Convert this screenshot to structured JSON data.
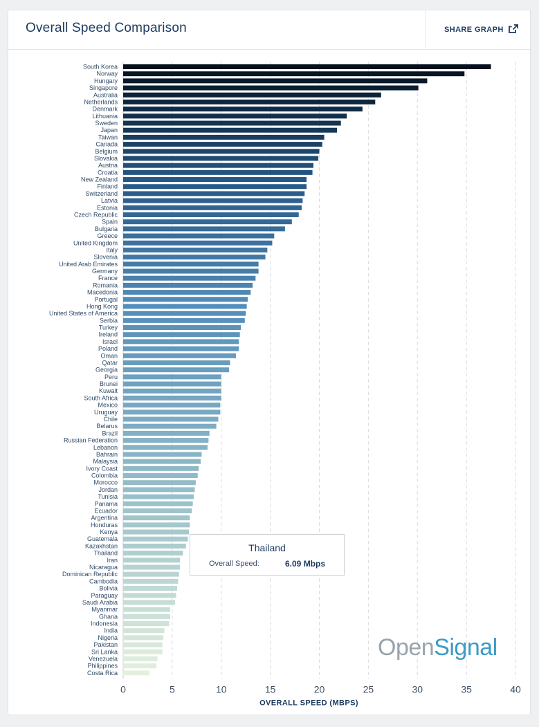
{
  "header": {
    "title": "Overall Speed Comparison",
    "share_label": "SHARE GRAPH",
    "share_icon": "share-icon"
  },
  "tooltip": {
    "country": "Thailand",
    "label": "Overall Speed:",
    "value": "6.09 Mbps"
  },
  "logo": {
    "open": "Open",
    "signal": "Signal"
  },
  "colors": {
    "bar_darkest": "#05101d",
    "bar_mid": "#3e82b6",
    "bar_lightest": "#e3f0de",
    "grid": "#d7dbdf",
    "text": "#1d3a5f",
    "logo_grey": "#9aa3ab",
    "logo_blue": "#3e99c8"
  },
  "chart_data": {
    "type": "bar",
    "orientation": "horizontal",
    "xlabel": "OVERALL SPEED (MBPS)",
    "xlim": [
      0,
      40
    ],
    "xticks": [
      0,
      5,
      10,
      15,
      20,
      25,
      30,
      35,
      40
    ],
    "grid": "vertical dashed",
    "categories": [
      "South Korea",
      "Norway",
      "Hungary",
      "Singapore",
      "Australia",
      "Netherlands",
      "Denmark",
      "Lithuania",
      "Sweden",
      "Japan",
      "Taiwan",
      "Canada",
      "Belgium",
      "Slovakia",
      "Austria",
      "Croatia",
      "New Zealand",
      "Finland",
      "Switzerland",
      "Latvia",
      "Estonia",
      "Czech Republic",
      "Spain",
      "Bulgaria",
      "Greece",
      "United Kingdom",
      "Italy",
      "Slovenia",
      "United Arab Emirates",
      "Germany",
      "France",
      "Romania",
      "Macedonia",
      "Portugal",
      "Hong Kong",
      "United States of America",
      "Serbia",
      "Turkey",
      "Ireland",
      "Israel",
      "Poland",
      "Oman",
      "Qatar",
      "Georgia",
      "Peru",
      "Brunei",
      "Kuwait",
      "South Africa",
      "Mexico",
      "Uruguay",
      "Chile",
      "Belarus",
      "Brazil",
      "Russian Federation",
      "Lebanon",
      "Bahrain",
      "Malaysia",
      "Ivory Coast",
      "Colombia",
      "Morocco",
      "Jordan",
      "Tunisia",
      "Panama",
      "Ecuador",
      "Argentina",
      "Honduras",
      "Kenya",
      "Guatemala",
      "Kazakhstan",
      "Thailand",
      "Iran",
      "Nicaragua",
      "Dominican Republic",
      "Cambodia",
      "Bolivia",
      "Paraguay",
      "Saudi Arabia",
      "Myanmar",
      "Ghana",
      "Indonesia",
      "India",
      "Nigeria",
      "Pakistan",
      "Sri Lanka",
      "Venezuela",
      "Philippines",
      "Costa Rica"
    ],
    "values": [
      37.5,
      34.8,
      31.0,
      30.1,
      26.3,
      25.7,
      24.4,
      22.8,
      22.2,
      21.8,
      20.5,
      20.3,
      20.0,
      19.9,
      19.4,
      19.3,
      18.7,
      18.7,
      18.5,
      18.3,
      18.2,
      17.9,
      17.2,
      16.5,
      15.4,
      15.2,
      14.7,
      14.5,
      13.8,
      13.8,
      13.5,
      13.2,
      13.0,
      12.7,
      12.6,
      12.5,
      12.4,
      12.0,
      11.9,
      11.8,
      11.8,
      11.5,
      10.9,
      10.8,
      10.0,
      10.0,
      10.0,
      10.0,
      9.9,
      9.9,
      9.7,
      9.5,
      8.8,
      8.7,
      8.6,
      8.0,
      7.9,
      7.7,
      7.6,
      7.4,
      7.3,
      7.2,
      7.1,
      7.0,
      6.8,
      6.8,
      6.7,
      6.6,
      6.4,
      6.09,
      5.8,
      5.8,
      5.7,
      5.6,
      5.5,
      5.4,
      5.3,
      4.8,
      4.8,
      4.7,
      4.2,
      4.1,
      4.0,
      4.0,
      3.5,
      3.4,
      2.7
    ]
  }
}
